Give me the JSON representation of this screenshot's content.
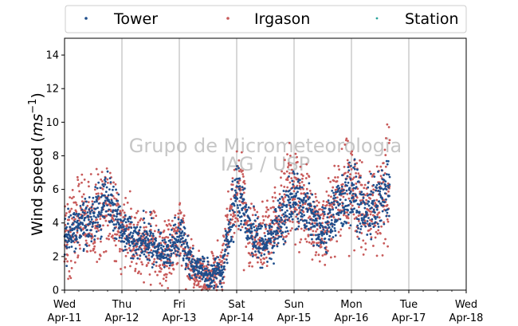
{
  "chart_data": {
    "type": "scatter",
    "title": "",
    "xlabel": "",
    "ylabel_base": "Wind speed (",
    "ylabel_unit": "ms",
    "ylabel_exp": "−1",
    "ylabel_close": ")",
    "ylim": [
      0,
      15
    ],
    "yticks": [
      0,
      2,
      4,
      6,
      8,
      10,
      12,
      14
    ],
    "xlim": [
      "2018-04-11",
      "2018-04-18"
    ],
    "x_ticks": [
      {
        "day": "Wed",
        "date": "Apr-11"
      },
      {
        "day": "Thu",
        "date": "Apr-12"
      },
      {
        "day": "Fri",
        "date": "Apr-13"
      },
      {
        "day": "Sat",
        "date": "Apr-14"
      },
      {
        "day": "Sun",
        "date": "Apr-15"
      },
      {
        "day": "Mon",
        "date": "Apr-16"
      },
      {
        "day": "Tue",
        "date": "Apr-17"
      },
      {
        "day": "Wed",
        "date": "Apr-18"
      }
    ],
    "grid": "vertical",
    "legend_placement": "top",
    "watermark": [
      "Grupo de Micrometeorologia",
      "IAG / USP"
    ],
    "series": [
      {
        "name": "Tower",
        "color": "#1f4e8c",
        "trend": [
          [
            "2018-04-11 00:00",
            3.0
          ],
          [
            "2018-04-11 06:00",
            4.0
          ],
          [
            "2018-04-11 12:00",
            4.5
          ],
          [
            "2018-04-11 18:00",
            5.5
          ],
          [
            "2018-04-12 00:00",
            3.5
          ],
          [
            "2018-04-12 06:00",
            3.0
          ],
          [
            "2018-04-12 12:00",
            3.0
          ],
          [
            "2018-04-12 18:00",
            2.0
          ],
          [
            "2018-04-13 00:00",
            3.5
          ],
          [
            "2018-04-13 06:00",
            1.5
          ],
          [
            "2018-04-13 12:00",
            1.0
          ],
          [
            "2018-04-13 18:00",
            1.2
          ],
          [
            "2018-04-14 00:00",
            6.0
          ],
          [
            "2018-04-14 06:00",
            3.5
          ],
          [
            "2018-04-14 12:00",
            2.5
          ],
          [
            "2018-04-14 18:00",
            4.0
          ],
          [
            "2018-04-15 00:00",
            5.5
          ],
          [
            "2018-04-15 06:00",
            4.5
          ],
          [
            "2018-04-15 12:00",
            3.5
          ],
          [
            "2018-04-15 18:00",
            5.0
          ],
          [
            "2018-04-16 00:00",
            6.0
          ],
          [
            "2018-04-16 06:00",
            4.5
          ],
          [
            "2018-04-16 12:00",
            5.5
          ],
          [
            "2018-04-16 16:00",
            6.0
          ]
        ]
      },
      {
        "name": "Irgason",
        "color": "#c85a5a",
        "trend": [
          [
            "2018-04-11 00:00",
            2.8
          ],
          [
            "2018-04-11 06:00",
            4.5
          ],
          [
            "2018-04-11 12:00",
            4.0
          ],
          [
            "2018-04-11 18:00",
            5.0
          ],
          [
            "2018-04-12 00:00",
            3.5
          ],
          [
            "2018-04-12 06:00",
            3.0
          ],
          [
            "2018-04-12 12:00",
            3.0
          ],
          [
            "2018-04-12 18:00",
            2.0
          ],
          [
            "2018-04-13 00:00",
            3.5
          ],
          [
            "2018-04-13 06:00",
            1.0
          ],
          [
            "2018-04-13 12:00",
            0.8
          ],
          [
            "2018-04-13 18:00",
            1.5
          ],
          [
            "2018-04-14 00:00",
            6.5
          ],
          [
            "2018-04-14 06:00",
            3.0
          ],
          [
            "2018-04-14 12:00",
            3.0
          ],
          [
            "2018-04-14 18:00",
            4.5
          ],
          [
            "2018-04-15 00:00",
            6.0
          ],
          [
            "2018-04-15 06:00",
            4.5
          ],
          [
            "2018-04-15 12:00",
            3.5
          ],
          [
            "2018-04-15 18:00",
            5.5
          ],
          [
            "2018-04-16 00:00",
            6.5
          ],
          [
            "2018-04-16 06:00",
            4.5
          ],
          [
            "2018-04-16 12:00",
            5.0
          ],
          [
            "2018-04-16 16:00",
            6.5
          ]
        ]
      },
      {
        "name": "Station",
        "color": "#2aa39b",
        "trend": []
      }
    ]
  }
}
